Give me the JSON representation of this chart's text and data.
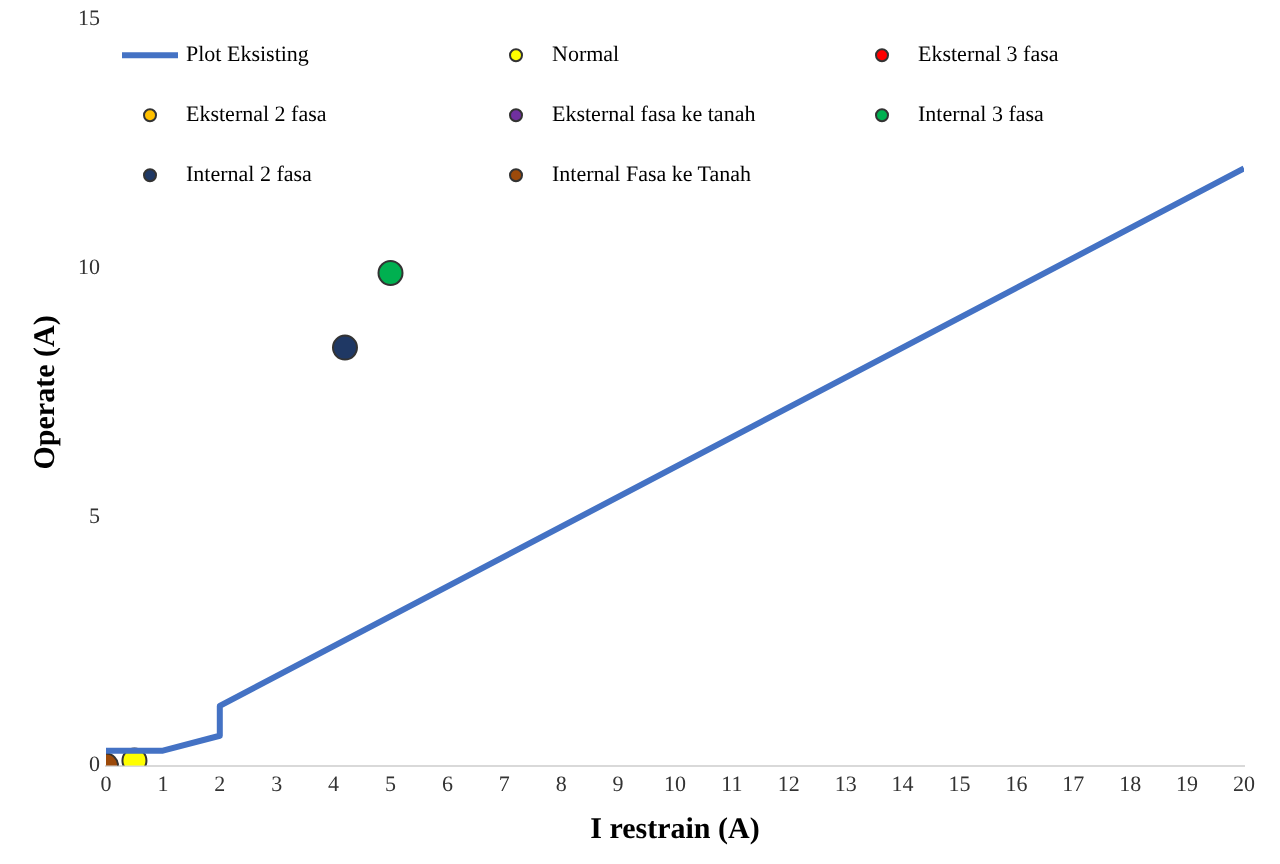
{
  "chart_data": {
    "type": "scatter",
    "xlabel": "I restrain (A)",
    "ylabel": "Operate (A)",
    "xlim": [
      0,
      20
    ],
    "xticks": [
      0,
      1,
      2,
      3,
      4,
      5,
      6,
      7,
      8,
      9,
      10,
      11,
      12,
      13,
      14,
      15,
      16,
      17,
      18,
      19,
      20
    ],
    "ylim": [
      0,
      15
    ],
    "yticks": [
      0,
      5,
      10,
      15
    ],
    "grid": false,
    "legend": "top",
    "marker": "circle",
    "series": [
      {
        "name": "Plot Eksisting",
        "type": "line",
        "color": "#4472c4",
        "marker": "none",
        "x": [
          0,
          1,
          2,
          2,
          20
        ],
        "values": [
          0.3,
          0.3,
          0.6,
          1.2,
          12
        ]
      },
      {
        "name": "Normal",
        "color": "#ffff00",
        "x": [
          0.5
        ],
        "values": [
          0.1
        ]
      },
      {
        "name": "Eksternal 3 fasa",
        "color": "#ff0000"
      },
      {
        "name": "Eksternal 2 fasa",
        "color": "#ffc000"
      },
      {
        "name": "Eksternal fasa ke tanah",
        "color": "#7030a0"
      },
      {
        "name": "Internal 3 fasa",
        "color": "#00b050",
        "x": [
          5
        ],
        "values": [
          9.9
        ]
      },
      {
        "name": "Internal 2 fasa",
        "color": "#1f3864",
        "x": [
          4.2
        ],
        "values": [
          8.4
        ]
      },
      {
        "name": "Internal Fasa ke Tanah",
        "color": "#9c4a0a",
        "x": [
          0
        ],
        "values": [
          0
        ]
      }
    ]
  }
}
